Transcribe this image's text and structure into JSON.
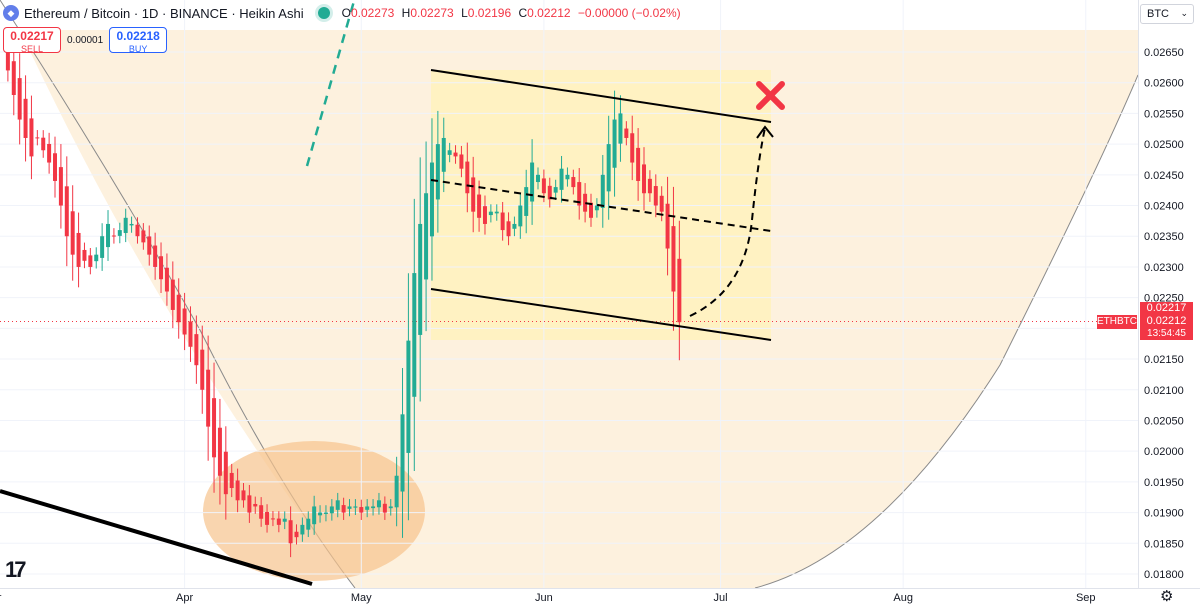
{
  "header": {
    "title": "Ethereum / Bitcoin · 1D · BINANCE · Heikin Ashi",
    "ohlc": {
      "o_label": "O",
      "o": "0.02273",
      "h_label": "H",
      "h": "0.02273",
      "l_label": "L",
      "l": "0.02196",
      "c_label": "C",
      "c": "0.02212",
      "change": "−0.00000 (−0.02%)"
    }
  },
  "trade": {
    "sell_price": "0.02217",
    "sell_label": "SELL",
    "spread": "0.00001",
    "buy_price": "0.02218",
    "buy_label": "BUY"
  },
  "currency": "BTC",
  "price_tags": {
    "symbol": "ETHBTC",
    "ask": "0.02217",
    "last": "0.02212",
    "countdown": "13:54:45"
  },
  "colors": {
    "up": "#22ab94",
    "down": "#f23645",
    "channel_fill": "#fff2c2",
    "arc_fill": "#fdf1de",
    "ellipse_fill": "#f6c38d",
    "marker": "#f23645"
  },
  "chart_data": {
    "type": "candlestick",
    "style": "Heikin Ashi",
    "y_axis": {
      "ticks": [
        "0.02650",
        "0.02600",
        "0.02550",
        "0.02500",
        "0.02450",
        "0.02400",
        "0.02350",
        "0.02300",
        "0.02250",
        "0.02200",
        "0.02150",
        "0.02100",
        "0.02050",
        "0.02000",
        "0.01950",
        "0.01900",
        "0.01850",
        "0.01800"
      ],
      "ylim": [
        0.01785,
        0.0268
      ],
      "position": "right"
    },
    "x_axis": {
      "ticks": [
        {
          "label": "Mar",
          "day": 0
        },
        {
          "label": "Apr",
          "day": 31
        },
        {
          "label": "May",
          "day": 61
        },
        {
          "label": "Jun",
          "day": 92
        },
        {
          "label": "Jul",
          "day": 122
        },
        {
          "label": "Aug",
          "day": 153
        },
        {
          "label": "Sep",
          "day": 184
        }
      ],
      "xlim": [
        0,
        203
      ]
    },
    "anchor": {
      "day": 0,
      "close": 0.0265
    },
    "closes": [
      0.0262,
      0.0258,
      0.0254,
      0.0251,
      0.0248,
      0.0251,
      0.0249,
      0.0247,
      0.0244,
      0.024,
      0.0235,
      0.0232,
      0.023,
      0.0231,
      0.023,
      0.0232,
      0.0235,
      0.0237,
      0.0235,
      0.0236,
      0.0238,
      0.0237,
      0.0235,
      0.0234,
      0.0232,
      0.023,
      0.0228,
      0.0226,
      0.0223,
      0.0221,
      0.0219,
      0.0217,
      0.0214,
      0.021,
      0.0204,
      0.0199,
      0.0196,
      0.0193,
      0.0194,
      0.0192,
      0.0192,
      0.019,
      0.0191,
      0.0189,
      0.0188,
      0.0189,
      0.0188,
      0.0189,
      0.0185,
      0.0186,
      0.0188,
      0.0189,
      0.0191,
      0.019,
      0.019,
      0.0191,
      0.0192,
      0.019,
      0.0191,
      0.0191,
      0.019,
      0.0191,
      0.0191,
      0.0192,
      0.019,
      0.0191,
      0.0196,
      0.0206,
      0.0218,
      0.0229,
      0.0237,
      0.0242,
      0.0247,
      0.025,
      0.0251,
      0.0249,
      0.0248,
      0.0246,
      0.0242,
      0.0239,
      0.0238,
      0.0237,
      0.0239,
      0.0239,
      0.0236,
      0.0235,
      0.0237,
      0.024,
      0.0243,
      0.0247,
      0.0245,
      0.0242,
      0.0241,
      0.0243,
      0.0246,
      0.0245,
      0.0243,
      0.024,
      0.0239,
      0.0238,
      0.024,
      0.0245,
      0.025,
      0.0254,
      0.0255,
      0.0251,
      0.0247,
      0.0244,
      0.0242,
      0.0242,
      0.024,
      0.0239,
      0.0233,
      0.0226,
      0.0221
    ]
  }
}
